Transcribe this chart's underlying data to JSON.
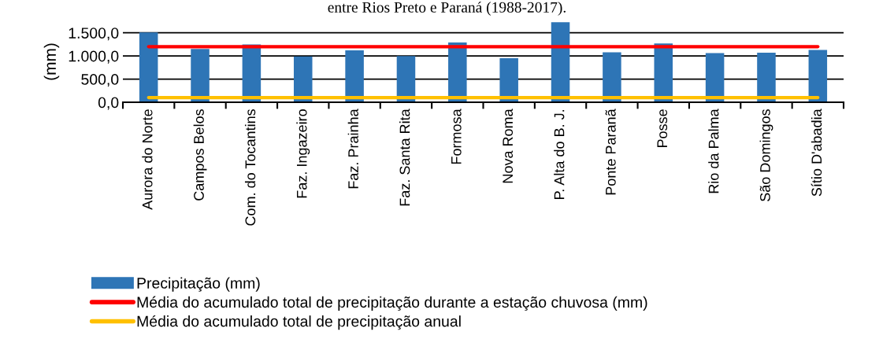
{
  "chart_data": {
    "type": "bar",
    "title": "entre Rios Preto e Paraná (1988-2017).",
    "ylabel": "(mm)",
    "categories": [
      "Aurora do Norte",
      "Campos Belos",
      "Com. do Tocantins",
      "Faz. Ingazeiro",
      "Faz. Prainha",
      "Faz. Santa Rita",
      "Formosa",
      "Nova Roma",
      "P. Alta do B. J.",
      "Ponte Paranã",
      "Posse",
      "Rio da Palma",
      "São Domingos",
      "Sítio D'abadia"
    ],
    "series": [
      {
        "name": "Precipitação (mm)",
        "color": "#2e75b6",
        "values": [
          1510,
          1150,
          1250,
          990,
          1120,
          1000,
          1290,
          950,
          1730,
          1080,
          1270,
          1060,
          1070,
          1130
        ]
      },
      {
        "name": "Média do acumulado total de precipitação durante a estação chuvosa (mm)",
        "type": "line",
        "color": "#ff0000",
        "values": [
          1200,
          1200,
          1200,
          1200,
          1200,
          1200,
          1200,
          1200,
          1200,
          1200,
          1200,
          1200,
          1200,
          1200
        ]
      },
      {
        "name": "Média do acumulado total de precipitação anual",
        "type": "line",
        "color": "#ffc000",
        "values": [
          100,
          100,
          100,
          100,
          100,
          100,
          100,
          100,
          100,
          100,
          100,
          100,
          100,
          100
        ]
      }
    ],
    "ylim": [
      0,
      1750
    ],
    "yticks": [
      {
        "value": 0,
        "label": "0,0"
      },
      {
        "value": 500,
        "label": "500,0"
      },
      {
        "value": 1000,
        "label": "1.000,0"
      },
      {
        "value": 1500,
        "label": "1.500,0"
      }
    ],
    "grid": "y",
    "legend": "bottom left",
    "marker": "none",
    "line_style": "solid"
  }
}
